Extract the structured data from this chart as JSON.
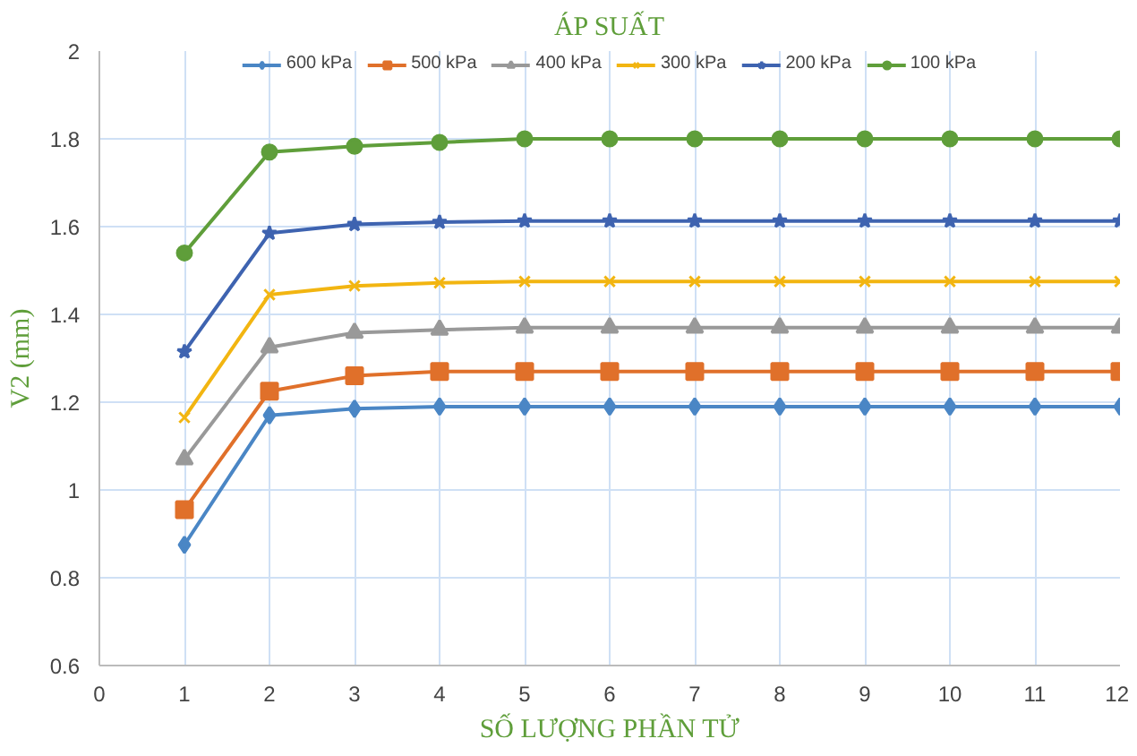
{
  "chart_data": {
    "type": "line",
    "title": "ÁP SUẤT",
    "xlabel": "SỐ LƯỢNG PHẦN TỬ",
    "ylabel": "V2 (mm)",
    "x": [
      1,
      2,
      3,
      4,
      5,
      6,
      7,
      8,
      9,
      10,
      11,
      12
    ],
    "xlim": [
      0,
      12
    ],
    "xticks": [
      0,
      1,
      2,
      3,
      4,
      5,
      6,
      7,
      8,
      9,
      10,
      11,
      12
    ],
    "ylim": [
      0.6,
      2
    ],
    "yticks": [
      0.6,
      0.8,
      1,
      1.2,
      1.4,
      1.6,
      1.8,
      2
    ],
    "grid": true,
    "legend": "top",
    "series": [
      {
        "name": "600 kPa",
        "color": "#4a86c5",
        "marker": "diamond",
        "values": [
          0.875,
          1.17,
          1.185,
          1.19,
          1.19,
          1.19,
          1.19,
          1.19,
          1.19,
          1.19,
          1.19,
          1.19
        ]
      },
      {
        "name": "500 kPa",
        "color": "#e0702a",
        "marker": "square",
        "values": [
          0.955,
          1.225,
          1.26,
          1.27,
          1.27,
          1.27,
          1.27,
          1.27,
          1.27,
          1.27,
          1.27,
          1.27
        ]
      },
      {
        "name": "400 kPa",
        "color": "#999999",
        "marker": "triangle",
        "values": [
          1.07,
          1.325,
          1.358,
          1.365,
          1.37,
          1.37,
          1.37,
          1.37,
          1.37,
          1.37,
          1.37,
          1.37
        ]
      },
      {
        "name": "300 kPa",
        "color": "#f2b511",
        "marker": "cross",
        "values": [
          1.165,
          1.445,
          1.465,
          1.472,
          1.475,
          1.475,
          1.475,
          1.475,
          1.475,
          1.475,
          1.475,
          1.475
        ]
      },
      {
        "name": "200 kPa",
        "color": "#3e63b0",
        "marker": "star",
        "values": [
          1.315,
          1.585,
          1.605,
          1.61,
          1.613,
          1.613,
          1.613,
          1.613,
          1.613,
          1.613,
          1.613,
          1.613
        ]
      },
      {
        "name": "100 kPa",
        "color": "#5f9e3a",
        "marker": "circle",
        "values": [
          1.54,
          1.77,
          1.783,
          1.792,
          1.8,
          1.8,
          1.8,
          1.8,
          1.8,
          1.8,
          1.8,
          1.8
        ]
      }
    ]
  }
}
